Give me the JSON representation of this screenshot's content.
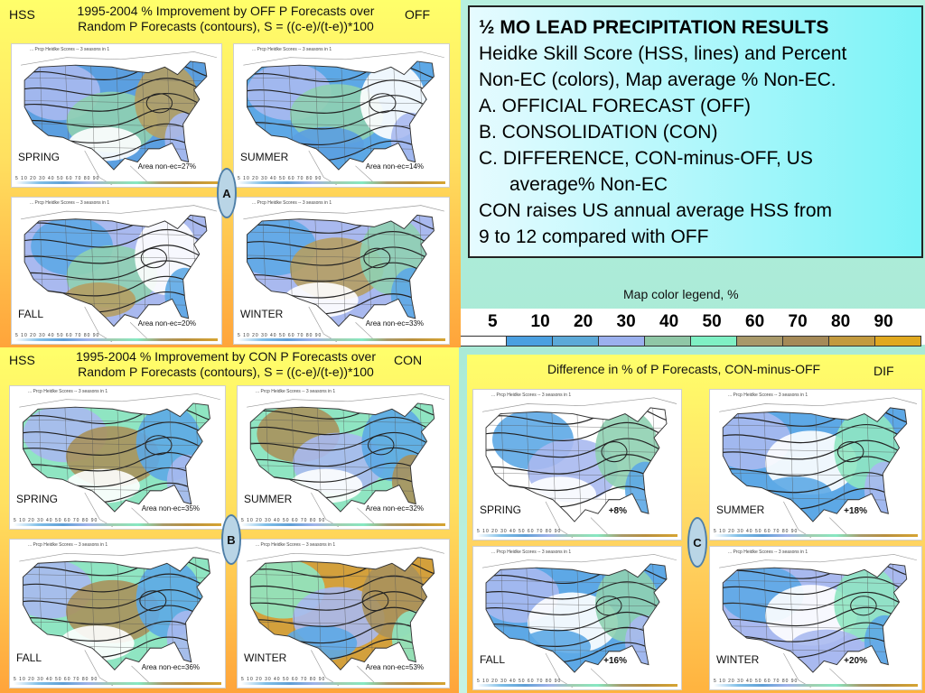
{
  "panelA": {
    "tag_left": "HSS",
    "tag_right": "OFF",
    "title_line1": "1995-2004 % Improvement by OFF P Forecasts over",
    "title_line2": "Random P Forecasts (contours),  S = ((c-e)/(t-e))*100",
    "label": "A",
    "maps": [
      {
        "season": "SPRING",
        "area": "Area non-ec=27%"
      },
      {
        "season": "SUMMER",
        "area": "Area non-ec=14%"
      },
      {
        "season": "FALL",
        "area": "Area non-ec=20%"
      },
      {
        "season": "WINTER",
        "area": "Area non-ec=33%"
      }
    ]
  },
  "panelB": {
    "tag_left": "HSS",
    "tag_right": "CON",
    "title_line1": "1995-2004 % Improvement by CON P Forecasts over",
    "title_line2": "Random P Forecasts (contours),  S = ((c-e)/(t-e))*100",
    "label": "B",
    "maps": [
      {
        "season": "SPRING",
        "area": "Area non-ec=35%"
      },
      {
        "season": "SUMMER",
        "area": "Area non-ec=32%"
      },
      {
        "season": "FALL",
        "area": "Area non-ec=36%"
      },
      {
        "season": "WINTER",
        "area": "Area non-ec=53%"
      }
    ]
  },
  "panelC": {
    "tag_right": "DIF",
    "title": "Difference in % of P Forecasts, CON-minus-OFF",
    "label": "C",
    "maps": [
      {
        "season": "SPRING",
        "pct": "+8%"
      },
      {
        "season": "SUMMER",
        "pct": "+18%"
      },
      {
        "season": "FALL",
        "pct": "+16%"
      },
      {
        "season": "WINTER",
        "pct": "+20%"
      }
    ]
  },
  "textbox": {
    "heading": "½ MO LEAD PRECIPITATION RESULTS",
    "line1": "Heidke Skill Score (HSS, lines) and Percent",
    "line2": "Non-EC (colors), Map average % Non-EC.",
    "line3": "A.  OFFICIAL FORECAST (OFF)",
    "line4": "B.  CONSOLIDATION (CON)",
    "line5": "C. DIFFERENCE, CON-minus-OFF, US",
    "line6": "average% Non-EC",
    "line7": "CON raises US annual average HSS from",
    "line8": "9 to 12 compared with OFF"
  },
  "legend": {
    "title": "Map color legend, %",
    "values": [
      "5",
      "10",
      "20",
      "30",
      "40",
      "50",
      "60",
      "70",
      "80",
      "90"
    ],
    "colors": [
      "#ffffff",
      "#4a9fe0",
      "#5ca9d8",
      "#9bb0ee",
      "#8fc7a6",
      "#7ff0c4",
      "#a8996a",
      "#a58a58",
      "#c39a3f",
      "#e0a81f"
    ]
  },
  "map_scale_text": "5  10  20  30  40  50  60  70  80  90",
  "map_header_text": "... Prcp Heidke Scores -- 3 seasons in 1"
}
